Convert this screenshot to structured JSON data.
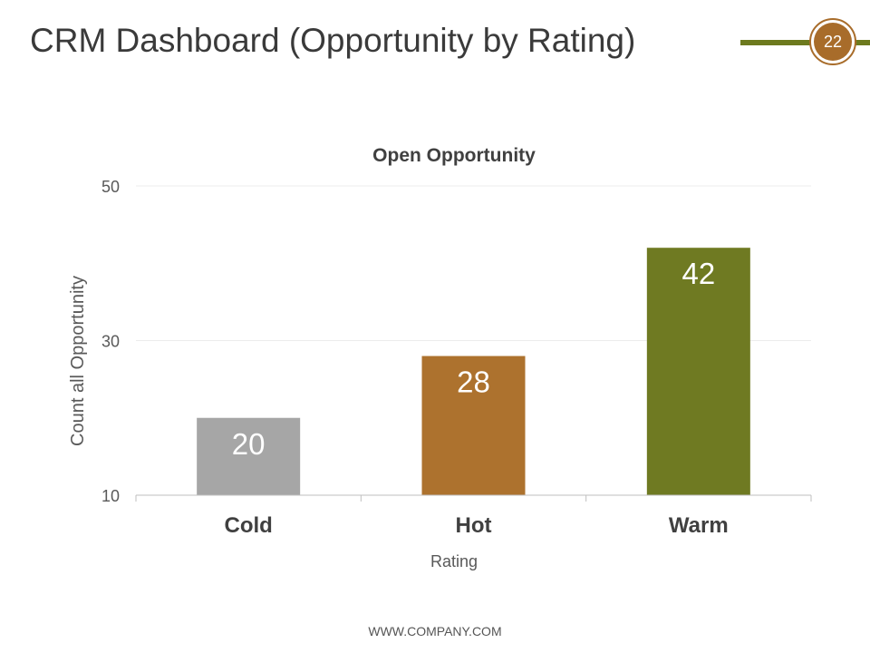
{
  "slide": {
    "title": "CRM Dashboard (Opportunity by Rating)",
    "page_number": "22",
    "footer": "WWW.COMPANY.COM"
  },
  "colors": {
    "accent_olive": "#6d7a1e",
    "accent_brown": "#a86c2a"
  },
  "chart_data": {
    "type": "bar",
    "title": "Open Opportunity",
    "xlabel": "Rating",
    "ylabel": "Count all Opportunity",
    "categories": [
      "Cold",
      "Hot",
      "Warm"
    ],
    "values": [
      20,
      28,
      42
    ],
    "data_labels": [
      "20",
      "28",
      "42"
    ],
    "bar_colors": [
      "#a6a6a6",
      "#ad722e",
      "#6f7a22"
    ],
    "ylim": [
      10,
      50
    ],
    "yticks": [
      10,
      30,
      50
    ],
    "ytick_labels": [
      "10",
      "30",
      "50"
    ],
    "grid": true,
    "legend": "none"
  }
}
